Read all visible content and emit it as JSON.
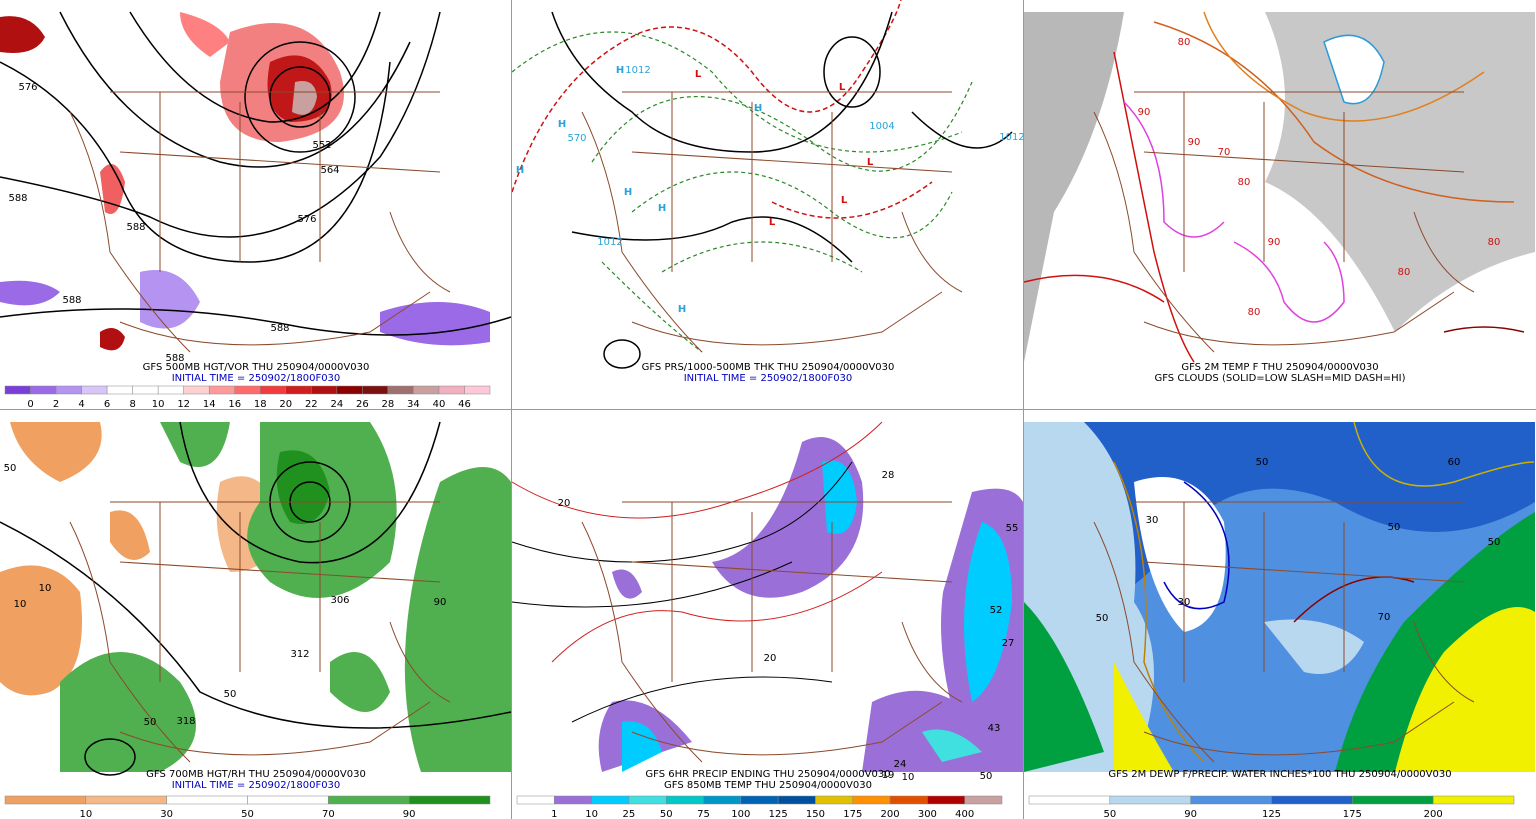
{
  "panels": [
    {
      "caption": [
        "GFS 500MB HGT/VOR THU 250904/0000V030",
        "INITIAL TIME = 250902/1800F030"
      ],
      "map_labels": [
        "576",
        "588",
        "588",
        "564",
        "552",
        "576",
        "588",
        "588",
        "588"
      ],
      "colorbar": {
        "labels": [
          "0",
          "2",
          "4",
          "6",
          "8",
          "10",
          "12",
          "14",
          "16",
          "18",
          "20",
          "22",
          "24",
          "26",
          "28",
          "34",
          "40",
          "46"
        ],
        "colors": [
          "#7a3fd9",
          "#9b6ae6",
          "#b593f0",
          "#d8c6f8",
          "#ffffff",
          "#ffffff",
          "#ffffff",
          "#ffd0d0",
          "#ff9a9a",
          "#ff6a6a",
          "#f03c3c",
          "#d01e1e",
          "#b01010",
          "#8b0000",
          "#7a1010",
          "#a07070",
          "#c8a0a0",
          "#f0b0c0",
          "#ffc8d8"
        ]
      }
    },
    {
      "caption": [
        "GFS PRS/1000-500MB THK THU 250904/0000V030",
        "INITIAL TIME = 250902/1800F030"
      ],
      "map_labels": [
        "H",
        "H",
        "H",
        "H",
        "H",
        "H",
        "H",
        "L",
        "L",
        "L",
        "L",
        "L",
        "1012",
        "1012",
        "1004",
        "1012",
        "570"
      ]
    },
    {
      "caption": [
        "GFS 2M TEMP F THU 250904/0000V030",
        "GFS CLOUDS (SOLID=LOW SLASH=MID DASH=HI)"
      ],
      "map_labels": [
        "80",
        "90",
        "80",
        "70",
        "80",
        "90",
        "80",
        "90",
        "80"
      ]
    },
    {
      "caption": [
        "GFS 700MB HGT/RH THU 250904/0000V030",
        "INITIAL TIME = 250902/1800F030"
      ],
      "map_labels": [
        "50",
        "10",
        "312",
        "318",
        "306",
        "50",
        "10",
        "90",
        "50"
      ],
      "colorbar": {
        "labels": [
          "10",
          "30",
          "50",
          "70",
          "90"
        ],
        "colors": [
          "#f0a060",
          "#f4b888",
          "#ffffff",
          "#ffffff",
          "#50b050",
          "#20901e"
        ]
      }
    },
    {
      "caption": [
        "GFS 6HR PRECIP ENDING THU 250904/0000V030",
        "GFS 850MB TEMP THU 250904/0000V030"
      ],
      "map_labels": [
        "28",
        "55",
        "52",
        "27",
        "43",
        "24",
        "19",
        "10",
        "50",
        "20",
        "20"
      ],
      "colorbar": {
        "labels": [
          "1",
          "10",
          "25",
          "50",
          "75",
          "100",
          "125",
          "150",
          "175",
          "200",
          "300",
          "400"
        ],
        "colors": [
          "#ffffff",
          "#9a70d8",
          "#00ccff",
          "#40e0e0",
          "#00c8c8",
          "#0096c8",
          "#0064b4",
          "#0050a0",
          "#e0c000",
          "#ff9000",
          "#e05000",
          "#b00000",
          "#c8a0a0"
        ]
      }
    },
    {
      "caption": [
        "GFS 2M DEWP F/PRECIP. WATER INCHES*100 THU 250904/0000V030"
      ],
      "map_labels": [
        "50",
        "30",
        "50",
        "30",
        "50",
        "70",
        "60",
        "50"
      ],
      "colorbar": {
        "labels": [
          "50",
          "90",
          "125",
          "175",
          "200"
        ],
        "colors": [
          "#ffffff",
          "#b8d8f0",
          "#5090e0",
          "#2060c8",
          "#00a040",
          "#f0f000"
        ]
      }
    }
  ]
}
